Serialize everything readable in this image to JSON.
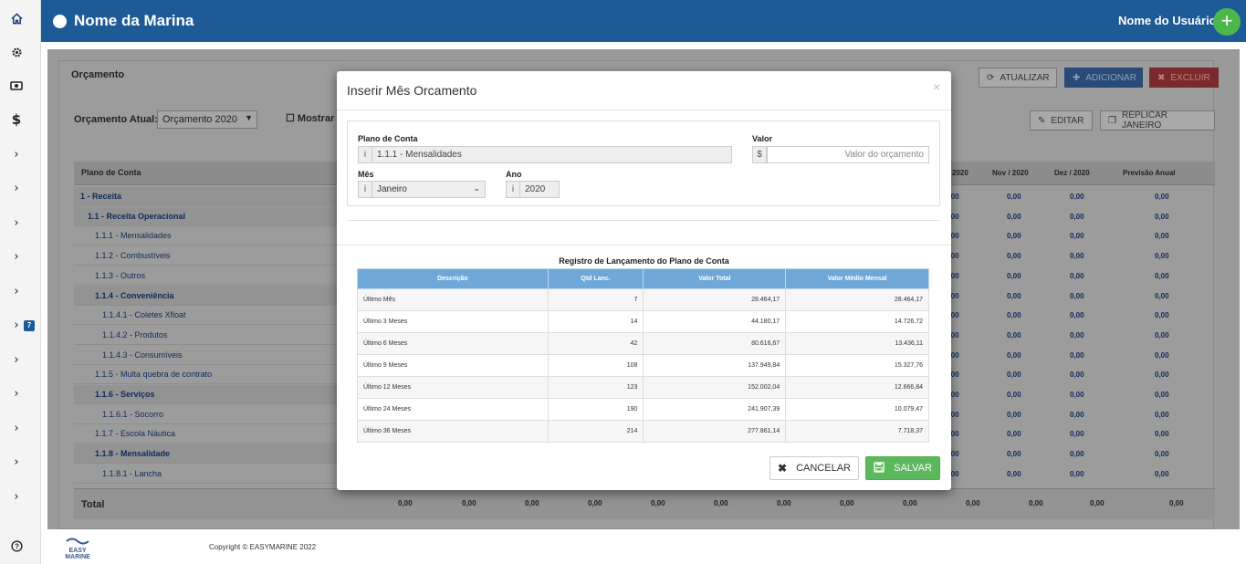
{
  "header": {
    "brand": "Nome da Marina",
    "user": "Nome do Usuário",
    "plus": "+"
  },
  "sidebar": {
    "icons": [
      "home-icon",
      "gear-icon",
      "eye-icon",
      "dollar-icon",
      "chevron-right-icon",
      "chevron-right-icon",
      "chevron-right-icon",
      "chevron-right-icon",
      "chevron-right-icon",
      "chevron-right-icon",
      "chevron-right-icon",
      "chevron-right-icon",
      "chevron-right-icon",
      "chevron-right-icon",
      "chevron-right-icon"
    ],
    "badge": "7",
    "help": "?"
  },
  "background": {
    "panel_title": "Orçamento",
    "buttons": {
      "atualizar": "ATUALIZAR",
      "adicionar": "ADICIONAR",
      "excluir": "EXCLUIR",
      "editar": "EDITAR",
      "replicar": "REPLICAR JANEIRO"
    },
    "orcamento_label": "Orçamento Atual:",
    "orcamento_value": "Orçamento 2020",
    "mostrar": "Mostrar I",
    "col_plano": "Plano de Conta",
    "col_right": [
      "2020",
      "Nov / 2020",
      "Dez / 2020",
      "Previsão Anual"
    ],
    "rows": [
      {
        "label": "1 - Receita",
        "bold": true,
        "indent": 0
      },
      {
        "label": "1.1 - Receita Operacional",
        "bold": true,
        "indent": 1
      },
      {
        "label": "1.1.1 - Mensalidades",
        "bold": false,
        "indent": 2
      },
      {
        "label": "1.1.2 - Combustíveis",
        "bold": false,
        "indent": 2
      },
      {
        "label": "1.1.3 - Outros",
        "bold": false,
        "indent": 2
      },
      {
        "label": "1.1.4 - Conveniência",
        "bold": true,
        "indent": 2
      },
      {
        "label": "1.1.4.1 - Coletes Xfloat",
        "bold": false,
        "indent": 3
      },
      {
        "label": "1.1.4.2 - Produtos",
        "bold": false,
        "indent": 3
      },
      {
        "label": "1.1.4.3 - Consumíveis",
        "bold": false,
        "indent": 3
      },
      {
        "label": "1.1.5 - Multa quebra de contrato",
        "bold": false,
        "indent": 2
      },
      {
        "label": "1.1.6 - Serviços",
        "bold": true,
        "indent": 2
      },
      {
        "label": "1.1.6.1 - Socorro",
        "bold": false,
        "indent": 3
      },
      {
        "label": "1.1.7 - Escola Náutica",
        "bold": false,
        "indent": 2
      },
      {
        "label": "1.1.8 - Mensalidade",
        "bold": true,
        "indent": 2
      },
      {
        "label": "1.1.8.1 - Lancha",
        "bold": false,
        "indent": 3
      }
    ],
    "cell_value": "0,00",
    "total_label": "Total",
    "total_values": [
      "0,00",
      "0,00",
      "0,00",
      "0,00",
      "0,00",
      "0,00",
      "0,00",
      "0,00",
      "0,00",
      "0,00",
      "0,00",
      "0,00",
      "0,00"
    ]
  },
  "footer": {
    "logo": "EASY MARINE",
    "copyright": "Copyright © EASYMARINE 2022"
  },
  "modal": {
    "title": "Inserir Mês Orcamento",
    "close": "×",
    "plano_label": "Plano de Conta",
    "plano_value": "1.1.1 - Mensalidades",
    "valor_label": "Valor",
    "valor_prefix": "$",
    "valor_placeholder": "Valor do orçamento",
    "mes_label": "Mês",
    "mes_value": "Janeiro",
    "ano_label": "Ano",
    "ano_value": "2020",
    "info_icon": "i",
    "registro_title": "Registro de Lançamento do Plano de Conta",
    "table_headers": [
      "Descrição",
      "Qtd Lanc.",
      "Valor Total",
      "Valor Médio Mensal"
    ],
    "table_rows": [
      [
        "Último Mês",
        "7",
        "28.464,17",
        "28.464,17"
      ],
      [
        "Último 3 Meses",
        "14",
        "44.180,17",
        "14.726,72"
      ],
      [
        "Último 6 Meses",
        "42",
        "80.616,67",
        "13.436,11"
      ],
      [
        "Último 9 Meses",
        "108",
        "137.949,84",
        "15.327,76"
      ],
      [
        "Último 12 Meses",
        "123",
        "152.002,04",
        "12.666,84"
      ],
      [
        "Último 24 Meses",
        "190",
        "241.907,39",
        "10.079,47"
      ],
      [
        "Último 36 Meses",
        "214",
        "277.861,14",
        "7.718,37"
      ]
    ],
    "cancel": "CANCELAR",
    "save": "SALVAR"
  },
  "colors": {
    "header": "#1e5a96",
    "save": "#5cb85c",
    "table_head": "#6fa8d8"
  }
}
